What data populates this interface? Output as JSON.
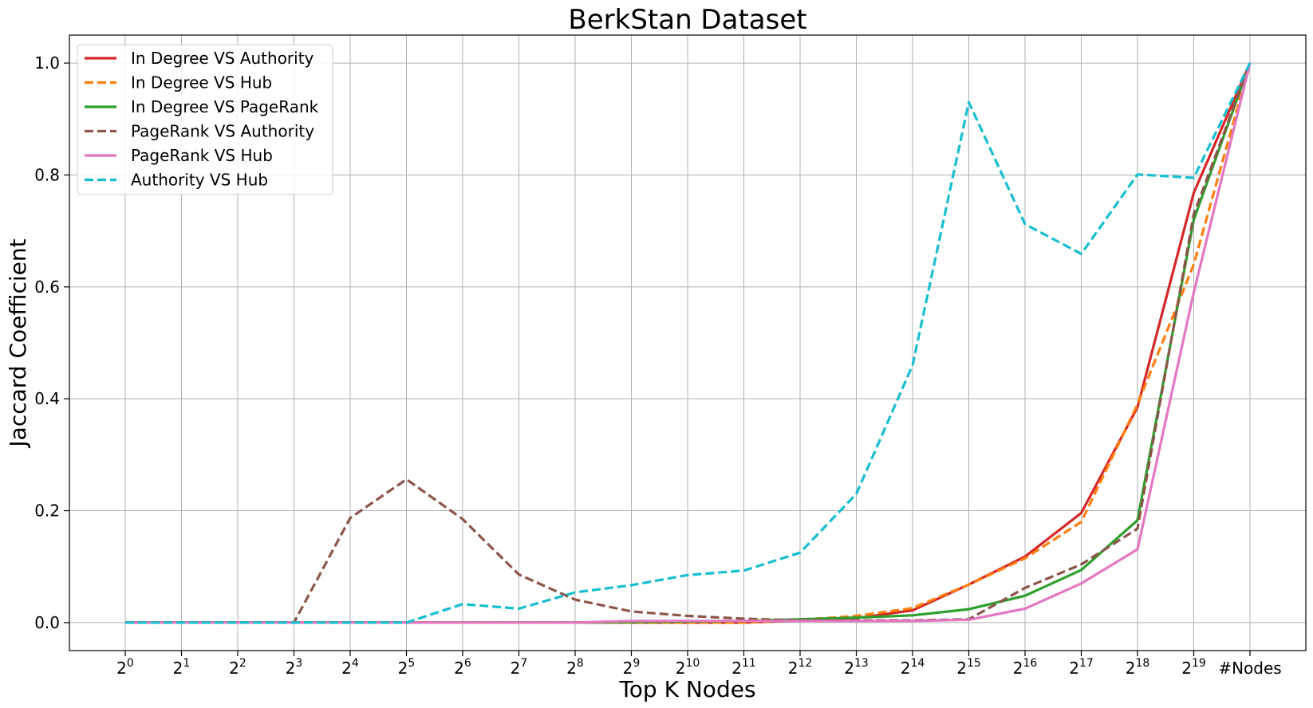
{
  "chart_data": {
    "type": "line",
    "title": "BerkStan Dataset",
    "xlabel": "Top K Nodes",
    "ylabel": "Jaccard Coefficient",
    "x": [
      {
        "base": "2",
        "exp": "0"
      },
      {
        "base": "2",
        "exp": "1"
      },
      {
        "base": "2",
        "exp": "2"
      },
      {
        "base": "2",
        "exp": "3"
      },
      {
        "base": "2",
        "exp": "4"
      },
      {
        "base": "2",
        "exp": "5"
      },
      {
        "base": "2",
        "exp": "6"
      },
      {
        "base": "2",
        "exp": "7"
      },
      {
        "base": "2",
        "exp": "8"
      },
      {
        "base": "2",
        "exp": "9"
      },
      {
        "base": "2",
        "exp": "10"
      },
      {
        "base": "2",
        "exp": "11"
      },
      {
        "base": "2",
        "exp": "12"
      },
      {
        "base": "2",
        "exp": "13"
      },
      {
        "base": "2",
        "exp": "14"
      },
      {
        "base": "2",
        "exp": "15"
      },
      {
        "base": "2",
        "exp": "16"
      },
      {
        "base": "2",
        "exp": "17"
      },
      {
        "base": "2",
        "exp": "18"
      },
      {
        "base": "2",
        "exp": "19"
      },
      {
        "base": "#Nodes",
        "exp": ""
      }
    ],
    "ylim": [
      -0.05,
      1.05
    ],
    "yticks": [
      "0.0",
      "0.2",
      "0.4",
      "0.6",
      "0.8",
      "1.0"
    ],
    "grid": true,
    "legend_position": "top-left",
    "series": [
      {
        "name": "In Degree VS Authority",
        "color": "#d62728",
        "dashed": false,
        "values": [
          0,
          0,
          0,
          0,
          0,
          0,
          0,
          0,
          0,
          0,
          0,
          0,
          0.004,
          0.008,
          0.022,
          0.068,
          0.118,
          0.196,
          0.385,
          0.768,
          1.0
        ]
      },
      {
        "name": "In Degree VS Hub",
        "color": "#ff7f0e",
        "dashed": true,
        "values": [
          0,
          0,
          0,
          0,
          0,
          0,
          0,
          0,
          0,
          0,
          0,
          0,
          0.005,
          0.012,
          0.026,
          0.068,
          0.115,
          0.18,
          0.39,
          0.64,
          1.0
        ]
      },
      {
        "name": "In Degree VS PageRank",
        "color": "#2ca02c",
        "dashed": false,
        "values": [
          0,
          0,
          0,
          0,
          0,
          0,
          0,
          0,
          0,
          0.001,
          0.002,
          0.003,
          0.006,
          0.009,
          0.013,
          0.024,
          0.048,
          0.094,
          0.183,
          0.72,
          1.0
        ]
      },
      {
        "name": "PageRank VS Authority",
        "color": "#8c564b",
        "dashed": true,
        "values": [
          0,
          0,
          0,
          0,
          0.187,
          0.256,
          0.185,
          0.086,
          0.041,
          0.02,
          0.012,
          0.007,
          0.004,
          0.004,
          0.004,
          0.006,
          0.062,
          0.104,
          0.168,
          0.73,
          1.0
        ]
      },
      {
        "name": "PageRank VS Hub",
        "color": "#e377c2",
        "dashed": false,
        "values": [
          0,
          0,
          0,
          0,
          0,
          0,
          0,
          0,
          0,
          0.003,
          0.003,
          0.003,
          0.003,
          0.003,
          0.003,
          0.005,
          0.025,
          0.07,
          0.131,
          0.59,
          1.0
        ]
      },
      {
        "name": "Authority VS Hub",
        "color": "#17becf",
        "dashed": true,
        "values": [
          0,
          0,
          0,
          0,
          0,
          0,
          0.033,
          0.025,
          0.054,
          0.067,
          0.085,
          0.093,
          0.125,
          0.23,
          0.46,
          0.93,
          0.712,
          0.659,
          0.801,
          0.795,
          1.0
        ]
      }
    ]
  }
}
